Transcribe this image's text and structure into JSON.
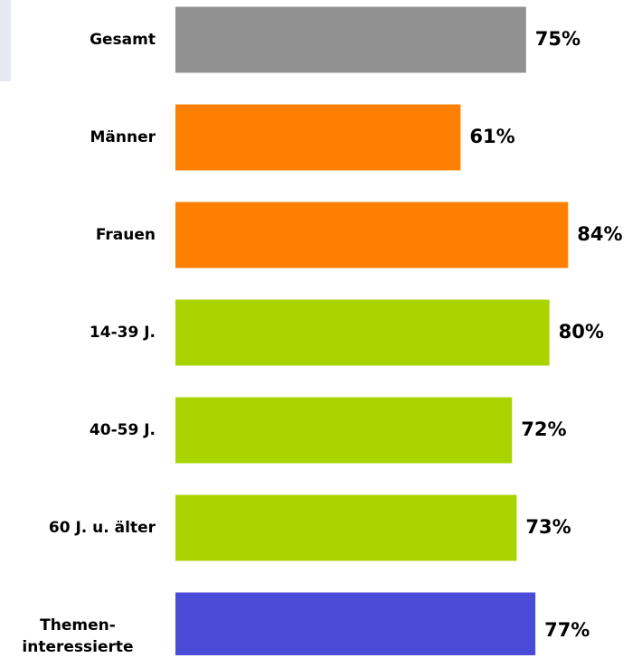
{
  "chart_data": {
    "type": "bar",
    "orientation": "horizontal",
    "categories": [
      "Gesamt",
      "Männer",
      "Frauen",
      "14-39 J.",
      "40-59 J.",
      "60 J. u. älter",
      "Themen-\ninteressierte"
    ],
    "values": [
      75,
      61,
      84,
      80,
      72,
      73,
      77
    ],
    "value_labels": [
      "75%",
      "61%",
      "84%",
      "80%",
      "72%",
      "73%",
      "77%"
    ],
    "colors": [
      "#919191",
      "#ff8000",
      "#ff8000",
      "#aad400",
      "#aad400",
      "#aad400",
      "#4a4bd6"
    ],
    "xlim": [
      0,
      100
    ]
  }
}
